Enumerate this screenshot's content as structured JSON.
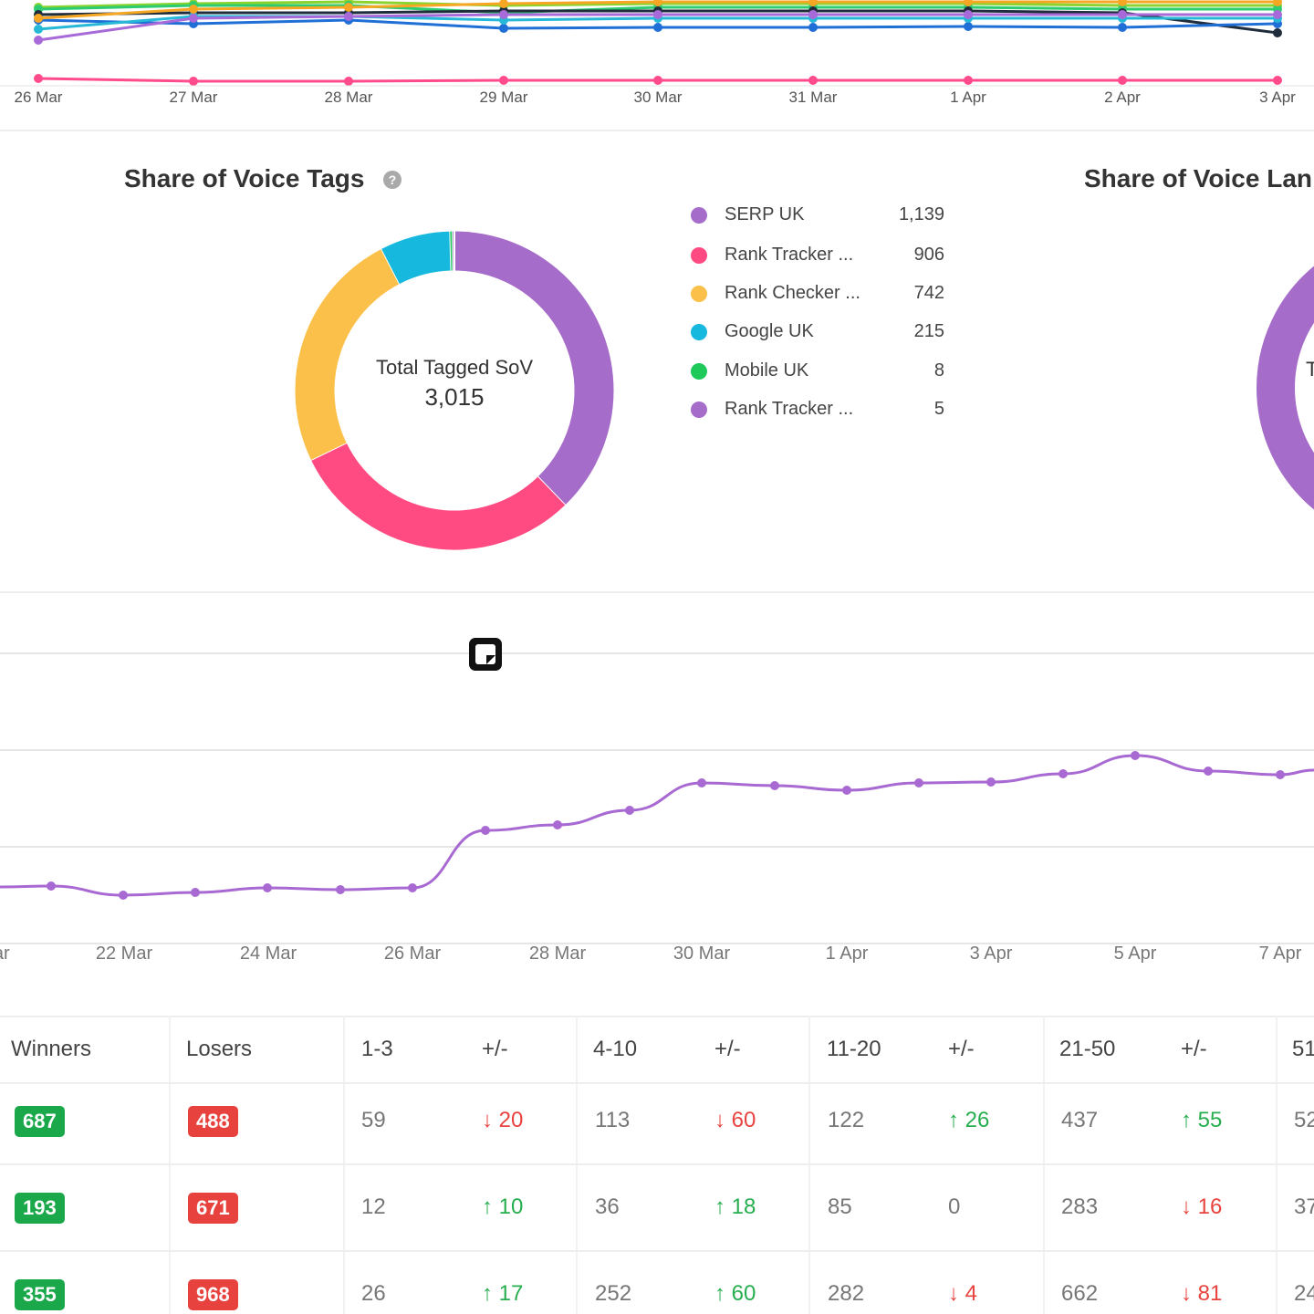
{
  "top_chart": {
    "x_labels": [
      "26 Mar",
      "27 Mar",
      "28 Mar",
      "29 Mar",
      "30 Mar",
      "31 Mar",
      "1 Apr",
      "2 Apr",
      "3 Apr"
    ],
    "series_colors": [
      "#8bd42f",
      "#2ecc71",
      "#1f2d3d",
      "#1f6fd6",
      "#27b8d8",
      "#f5a623",
      "#a76ad8",
      "#ff4b8b"
    ]
  },
  "share_of_voice_tags": {
    "title": "Share of Voice Tags",
    "help_icon": "question-circle-icon",
    "center_label": "Total Tagged SoV",
    "center_value": "3,015",
    "legend": [
      {
        "label": "SERP UK",
        "value": "1,139",
        "color": "#a66cc9"
      },
      {
        "label": "Rank Tracker ...",
        "value": "906",
        "color": "#ff4b81"
      },
      {
        "label": "Rank Checker ...",
        "value": "742",
        "color": "#fbc04a"
      },
      {
        "label": "Google UK",
        "value": "215",
        "color": "#16b8dd"
      },
      {
        "label": "Mobile UK",
        "value": "8",
        "color": "#1ec95a"
      },
      {
        "label": "Rank Tracker ...",
        "value": "5",
        "color": "#a66cc9"
      }
    ]
  },
  "share_of_voice_landing": {
    "title_visible": "Share of Voice Lan",
    "color": "#a66cc9"
  },
  "history_chart": {
    "x_labels": [
      "ar",
      "22 Mar",
      "24 Mar",
      "26 Mar",
      "28 Mar",
      "30 Mar",
      "1 Apr",
      "3 Apr",
      "5 Apr",
      "7 Apr"
    ],
    "color": "#a86ad2",
    "note_icon": "sticky-note-icon"
  },
  "table": {
    "headers": [
      "Winners",
      "Losers",
      "1-3",
      "+/-",
      "4-10",
      "+/-",
      "11-20",
      "+/-",
      "21-50",
      "+/-",
      "51"
    ],
    "rows": [
      {
        "winners": "687",
        "losers": "488",
        "r1_3": "59",
        "d1": "20",
        "d1_dir": "down",
        "r4_10": "113",
        "d2": "60",
        "d2_dir": "down",
        "r11_20": "122",
        "d3": "26",
        "d3_dir": "up",
        "r21_50": "437",
        "d4": "55",
        "d4_dir": "up",
        "r51": "52"
      },
      {
        "winners": "193",
        "losers": "671",
        "r1_3": "12",
        "d1": "10",
        "d1_dir": "up",
        "r4_10": "36",
        "d2": "18",
        "d2_dir": "up",
        "r11_20": "85",
        "d3": "0",
        "d3_dir": "none",
        "r21_50": "283",
        "d4": "16",
        "d4_dir": "down",
        "r51": "37"
      },
      {
        "winners": "355",
        "losers": "968",
        "r1_3": "26",
        "d1": "17",
        "d1_dir": "up",
        "r4_10": "252",
        "d2": "60",
        "d2_dir": "up",
        "r11_20": "282",
        "d3": "4",
        "d3_dir": "down",
        "r21_50": "662",
        "d4": "81",
        "d4_dir": "down",
        "r51": "24"
      }
    ]
  }
}
